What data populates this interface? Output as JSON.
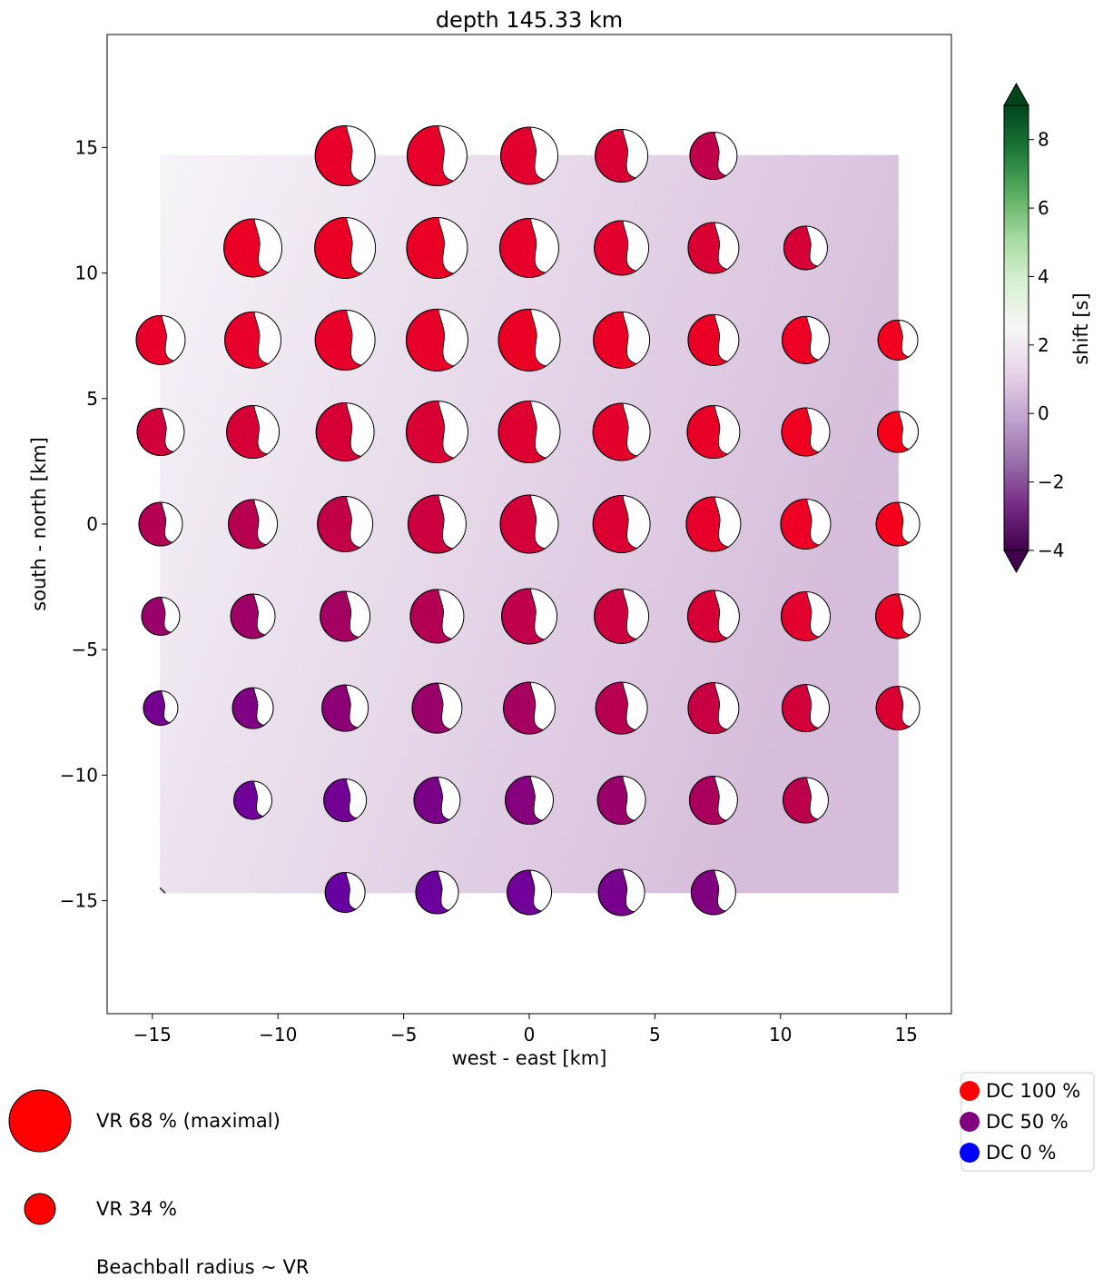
{
  "chart_data": {
    "type": "scatter",
    "title": "depth 145.33 km",
    "xlabel": "west - east [km]",
    "ylabel": "south - north [km]",
    "xlim": [
      -16.8,
      16.8
    ],
    "ylim": [
      -19.5,
      19.5
    ],
    "xticks": [
      -15,
      -10,
      -5,
      0,
      5,
      10,
      15
    ],
    "yticks": [
      -15,
      -10,
      -5,
      0,
      5,
      10,
      15
    ],
    "xtick_labels": [
      "−15",
      "−10",
      "−5",
      "0",
      "5",
      "10",
      "15"
    ],
    "ytick_labels": [
      "−15",
      "−10",
      "−5",
      "0",
      "5",
      "10",
      "15"
    ],
    "grid": false,
    "background_field": {
      "extent_km": [
        -14.7,
        14.7,
        -14.7,
        14.7
      ],
      "min_color": "#f6f4f7",
      "max_color": "#d6bddb"
    },
    "colorbar": {
      "label": "shift [s]",
      "min": -4,
      "max": 9,
      "ticks": [
        -4,
        -2,
        0,
        2,
        4,
        6,
        8
      ],
      "tick_labels": [
        "−4",
        "−2",
        "0",
        "2",
        "4",
        "6",
        "8"
      ],
      "colormap": [
        "#40004b",
        "#762a83",
        "#9970ab",
        "#c2a5cf",
        "#e7d4e8",
        "#f7f7f7",
        "#d9f0d3",
        "#a6dba0",
        "#5aae61",
        "#1b7837",
        "#00441b"
      ],
      "extend": "both"
    },
    "grid_step_km": 3.67,
    "rows": [
      {
        "y": 14.67,
        "x": [
          -7.33,
          -3.67,
          0,
          3.67,
          7.33
        ],
        "vr": [
          66,
          66,
          63,
          58,
          52
        ],
        "dc": [
          90,
          90,
          88,
          85,
          75
        ]
      },
      {
        "y": 11.0,
        "x": [
          -11.0,
          -7.33,
          -3.67,
          0,
          3.67,
          7.33,
          11.0
        ],
        "vr": [
          64,
          67,
          67,
          65,
          60,
          56,
          48
        ],
        "dc": [
          92,
          92,
          92,
          90,
          88,
          86,
          84
        ]
      },
      {
        "y": 7.33,
        "x": [
          -14.67,
          -11.0,
          -7.33,
          -3.67,
          0,
          3.67,
          7.33,
          11.0,
          14.67
        ],
        "vr": [
          54,
          62,
          66,
          68,
          68,
          62,
          56,
          52,
          44
        ],
        "dc": [
          90,
          90,
          90,
          90,
          92,
          92,
          92,
          93,
          95
        ]
      },
      {
        "y": 3.67,
        "x": [
          -14.67,
          -11.0,
          -7.33,
          -3.67,
          0,
          3.67,
          7.33,
          11.0,
          14.67
        ],
        "vr": [
          52,
          58,
          64,
          68,
          68,
          63,
          58,
          53,
          45
        ],
        "dc": [
          82,
          84,
          84,
          85,
          87,
          89,
          91,
          94,
          97
        ]
      },
      {
        "y": 0.0,
        "x": [
          -14.67,
          -11.0,
          -7.33,
          -3.67,
          0,
          3.67,
          7.33,
          11.0,
          14.67
        ],
        "vr": [
          48,
          54,
          61,
          64,
          64,
          63,
          60,
          55,
          48
        ],
        "dc": [
          70,
          72,
          76,
          80,
          83,
          86,
          90,
          93,
          96
        ]
      },
      {
        "y": -3.67,
        "x": [
          -14.67,
          -11.0,
          -7.33,
          -3.67,
          0,
          3.67,
          7.33,
          11.0,
          14.67
        ],
        "vr": [
          42,
          49,
          55,
          59,
          61,
          60,
          57,
          54,
          49
        ],
        "dc": [
          60,
          62,
          64,
          70,
          75,
          80,
          84,
          88,
          92
        ]
      },
      {
        "y": -7.33,
        "x": [
          -14.67,
          -11.0,
          -7.33,
          -3.67,
          0,
          3.67,
          7.33,
          11.0,
          14.67
        ],
        "vr": [
          38,
          45,
          51,
          55,
          57,
          57,
          56,
          52,
          48
        ],
        "dc": [
          40,
          48,
          55,
          60,
          65,
          72,
          78,
          82,
          86
        ]
      },
      {
        "y": -11.0,
        "x": [
          -11.0,
          -7.33,
          -3.67,
          0,
          3.67,
          7.33,
          11.0
        ],
        "vr": [
          42,
          47,
          51,
          53,
          53,
          53,
          50
        ],
        "dc": [
          35,
          38,
          45,
          52,
          60,
          66,
          74
        ]
      },
      {
        "y": -14.67,
        "x": [
          -7.33,
          -3.67,
          0,
          3.67,
          7.33
        ],
        "vr": [
          44,
          47,
          49,
          51,
          49
        ],
        "dc": [
          30,
          33,
          36,
          42,
          50
        ]
      }
    ],
    "vr_legend": [
      {
        "label": "VR 68 % (maximal)",
        "vr": 68
      },
      {
        "label": "VR 34 %",
        "vr": 34
      }
    ],
    "vr_note": "Beachball radius ~ VR",
    "dc_legend": [
      {
        "label": "DC 100 %",
        "color": "#ff0000"
      },
      {
        "label": "DC 50 %",
        "color": "#800080"
      },
      {
        "label": "DC 0 %",
        "color": "#0000ff"
      }
    ]
  }
}
